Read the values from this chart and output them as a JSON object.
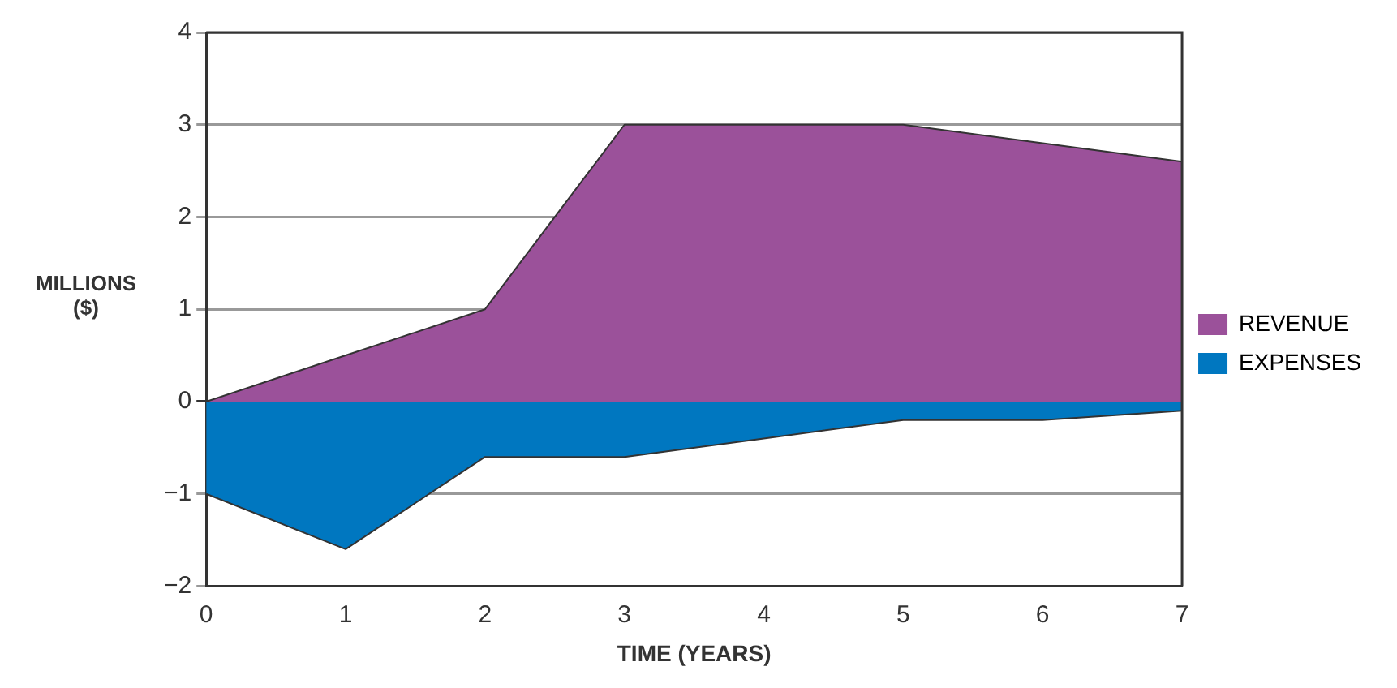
{
  "chart_data": {
    "type": "area",
    "xlabel": "TIME (YEARS)",
    "ylabel": "MILLIONS ($)",
    "x": [
      0,
      1,
      2,
      3,
      4,
      5,
      6,
      7
    ],
    "series": [
      {
        "name": "REVENUE",
        "color": "#9b519a",
        "values": [
          0,
          0.5,
          1,
          3,
          3,
          3,
          2.8,
          2.6
        ]
      },
      {
        "name": "EXPENSES",
        "color": "#0077c0",
        "values": [
          -1,
          -1.6,
          -0.6,
          -0.6,
          -0.4,
          -0.2,
          -0.2,
          -0.1
        ]
      }
    ],
    "xlim": [
      0,
      7
    ],
    "xticks": [
      0,
      1,
      2,
      3,
      4,
      5,
      6,
      7
    ],
    "ylim": [
      -2,
      4
    ],
    "yticks": [
      -2,
      -1,
      0,
      1,
      2,
      3,
      4
    ],
    "grid": "y",
    "legend": "right"
  }
}
